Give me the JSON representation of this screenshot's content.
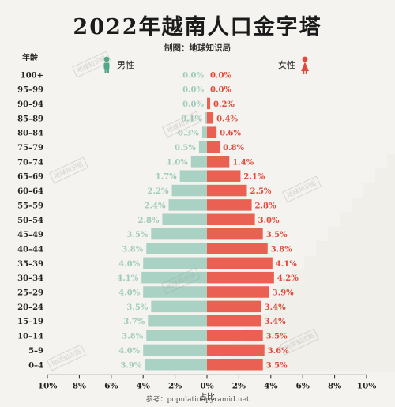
{
  "title": "2022年越南人口金字塔",
  "subtitle": "制图：地球知识局",
  "source": "参考：populationpyramid.net",
  "watermark": "地球知识局",
  "colors": {
    "male": "#a9d2c4",
    "female": "#ea6153",
    "male_text": "#9fcbbb",
    "female_text": "#e24a3b",
    "male_icon": "#4fa88a",
    "female_icon": "#df4a3b",
    "bg_bars": "#ecebe6"
  },
  "chart_data": {
    "type": "bar",
    "orientation": "horizontal",
    "title": "2022年越南人口金字塔",
    "ylabel": "年龄",
    "xlabel": "占比",
    "xlim": [
      -10,
      10
    ],
    "x_ticks": [
      "10%",
      "8%",
      "6%",
      "4%",
      "2%",
      "0%",
      "2%",
      "4%",
      "6%",
      "8%",
      "10%"
    ],
    "legend": [
      "男性",
      "女性"
    ],
    "categories": [
      "100+",
      "95–99",
      "90–94",
      "85–89",
      "80–84",
      "75–79",
      "70–74",
      "65–69",
      "60–64",
      "55–59",
      "50–54",
      "45–49",
      "40–44",
      "35–39",
      "30–34",
      "25–29",
      "20–24",
      "15–19",
      "10–14",
      "5–9",
      "0–4"
    ],
    "series": [
      {
        "name": "男性",
        "values": [
          0.0,
          0.0,
          0.0,
          0.1,
          0.3,
          0.5,
          1.0,
          1.7,
          2.2,
          2.4,
          2.8,
          3.5,
          3.8,
          4.0,
          4.1,
          4.0,
          3.5,
          3.7,
          3.8,
          4.0,
          3.9
        ]
      },
      {
        "name": "女性",
        "values": [
          0.0,
          0.0,
          0.2,
          0.4,
          0.6,
          0.8,
          1.4,
          2.1,
          2.5,
          2.8,
          3.0,
          3.5,
          3.8,
          4.1,
          4.2,
          3.9,
          3.4,
          3.4,
          3.5,
          3.6,
          3.5
        ]
      }
    ]
  }
}
